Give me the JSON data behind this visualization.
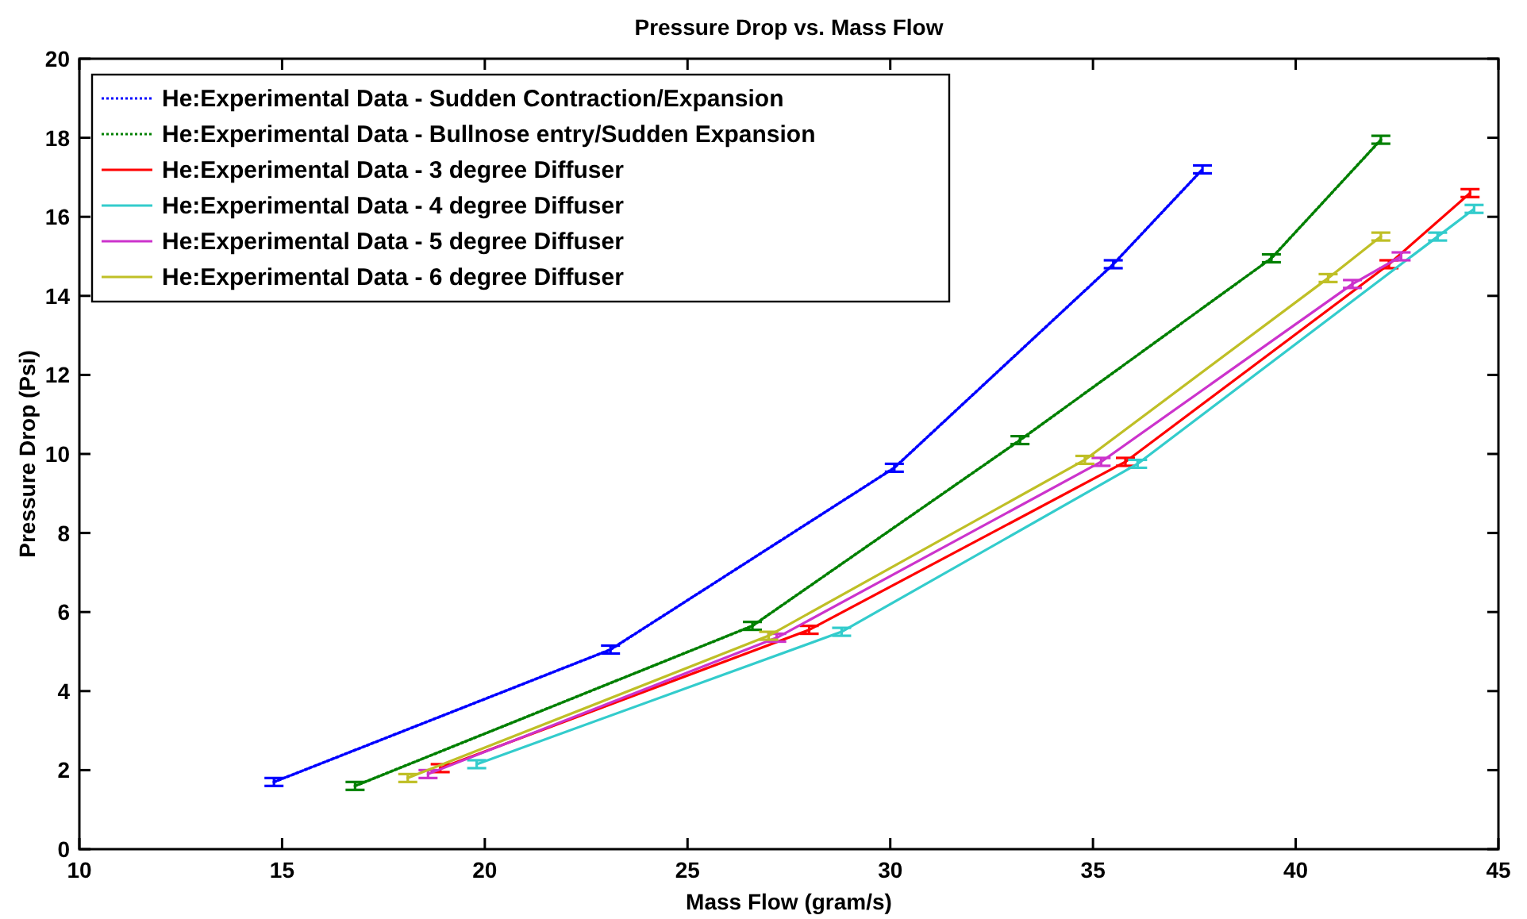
{
  "chart_data": {
    "type": "line",
    "title": "Pressure Drop vs. Mass Flow",
    "xlabel": "Mass Flow (gram/s)",
    "ylabel": "Pressure Drop (Psi)",
    "xlim": [
      10,
      45
    ],
    "xticks": [
      10,
      15,
      20,
      25,
      30,
      35,
      40,
      45
    ],
    "ylim": [
      0,
      20
    ],
    "yticks": [
      0,
      2,
      4,
      6,
      8,
      10,
      12,
      14,
      16,
      18,
      20
    ],
    "grid": false,
    "legend": "top left",
    "marker": "none",
    "series": [
      {
        "name": "He:Experimental Data - Sudden Contraction/Expansion",
        "color": "#0000ff",
        "line_style": "dotted",
        "x": [
          14.8,
          23.1,
          30.1,
          35.5,
          37.7
        ],
        "values": [
          1.7,
          5.05,
          9.65,
          14.8,
          17.2
        ],
        "errors": [
          0.1,
          0.1,
          0.1,
          0.1,
          0.1
        ]
      },
      {
        "name": "He:Experimental Data - Bullnose entry/Sudden Expansion",
        "color": "#008000",
        "line_style": "dotted",
        "x": [
          16.8,
          26.6,
          33.2,
          39.4,
          42.1
        ],
        "values": [
          1.6,
          5.65,
          10.35,
          14.95,
          17.95
        ],
        "errors": [
          0.1,
          0.1,
          0.1,
          0.1,
          0.1
        ]
      },
      {
        "name": "He:Experimental Data - 3 degree Diffuser",
        "color": "#ff0000",
        "line_style": "solid",
        "x": [
          18.9,
          28.0,
          35.8,
          42.3,
          44.3
        ],
        "values": [
          2.05,
          5.55,
          9.8,
          14.8,
          16.6
        ],
        "errors": [
          0.1,
          0.1,
          0.1,
          0.1,
          0.1
        ]
      },
      {
        "name": "He:Experimental Data - 4 degree Diffuser",
        "color": "#33cccc",
        "line_style": "solid",
        "x": [
          19.8,
          28.8,
          36.1,
          43.5,
          44.4
        ],
        "values": [
          2.15,
          5.5,
          9.75,
          15.5,
          16.2
        ],
        "errors": [
          0.1,
          0.1,
          0.1,
          0.1,
          0.1
        ]
      },
      {
        "name": "He:Experimental Data - 5 degree Diffuser",
        "color": "#cc33cc",
        "line_style": "solid",
        "x": [
          18.6,
          27.2,
          35.2,
          41.4,
          42.6
        ],
        "values": [
          1.9,
          5.35,
          9.8,
          14.3,
          15.0
        ],
        "errors": [
          0.1,
          0.1,
          0.1,
          0.1,
          0.1
        ]
      },
      {
        "name": "He:Experimental Data - 6 degree Diffuser",
        "color": "#bfbf26",
        "line_style": "solid",
        "x": [
          18.1,
          27.0,
          34.8,
          40.8,
          42.1
        ],
        "values": [
          1.8,
          5.4,
          9.85,
          14.45,
          15.5
        ],
        "errors": [
          0.1,
          0.1,
          0.1,
          0.1,
          0.1
        ]
      }
    ]
  }
}
